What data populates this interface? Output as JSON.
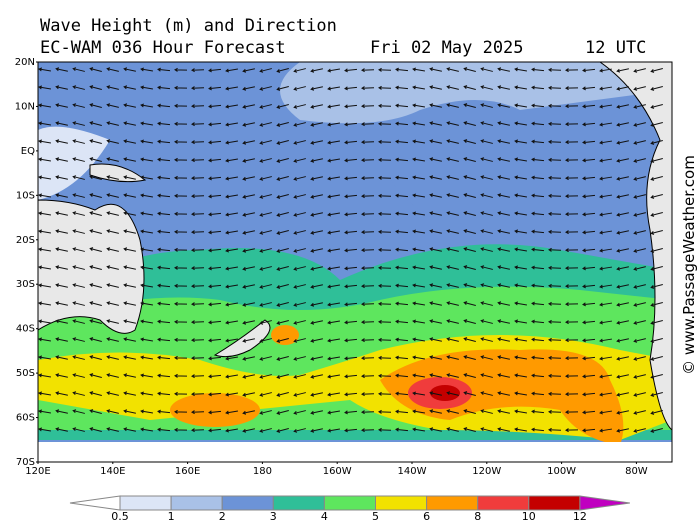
{
  "header": {
    "title": "Wave Height (m) and Direction",
    "model": "EC-WAM 036 Hour Forecast",
    "date": "Fri 02 May 2025",
    "time": "12 UTC"
  },
  "map": {
    "lat_labels": [
      "20N",
      "10N",
      "EQ",
      "10S",
      "20S",
      "30S",
      "40S",
      "50S",
      "60S",
      "70S"
    ],
    "lon_labels": [
      "120E",
      "140E",
      "160E",
      "180",
      "160W",
      "140W",
      "120W",
      "100W",
      "80W"
    ]
  },
  "colorbar": {
    "ticks": [
      0.5,
      1,
      2,
      3,
      4,
      5,
      6,
      8,
      10,
      12
    ],
    "colors": [
      "#dce5f6",
      "#a9c1e7",
      "#6c93d7",
      "#2fbf98",
      "#5ee65e",
      "#f2e200",
      "#ff9a00",
      "#f03c3c",
      "#c40000"
    ],
    "under_color": "#ffffff",
    "over_color": "#c000c0"
  },
  "watermark": "© www.PassageWeather.com"
}
